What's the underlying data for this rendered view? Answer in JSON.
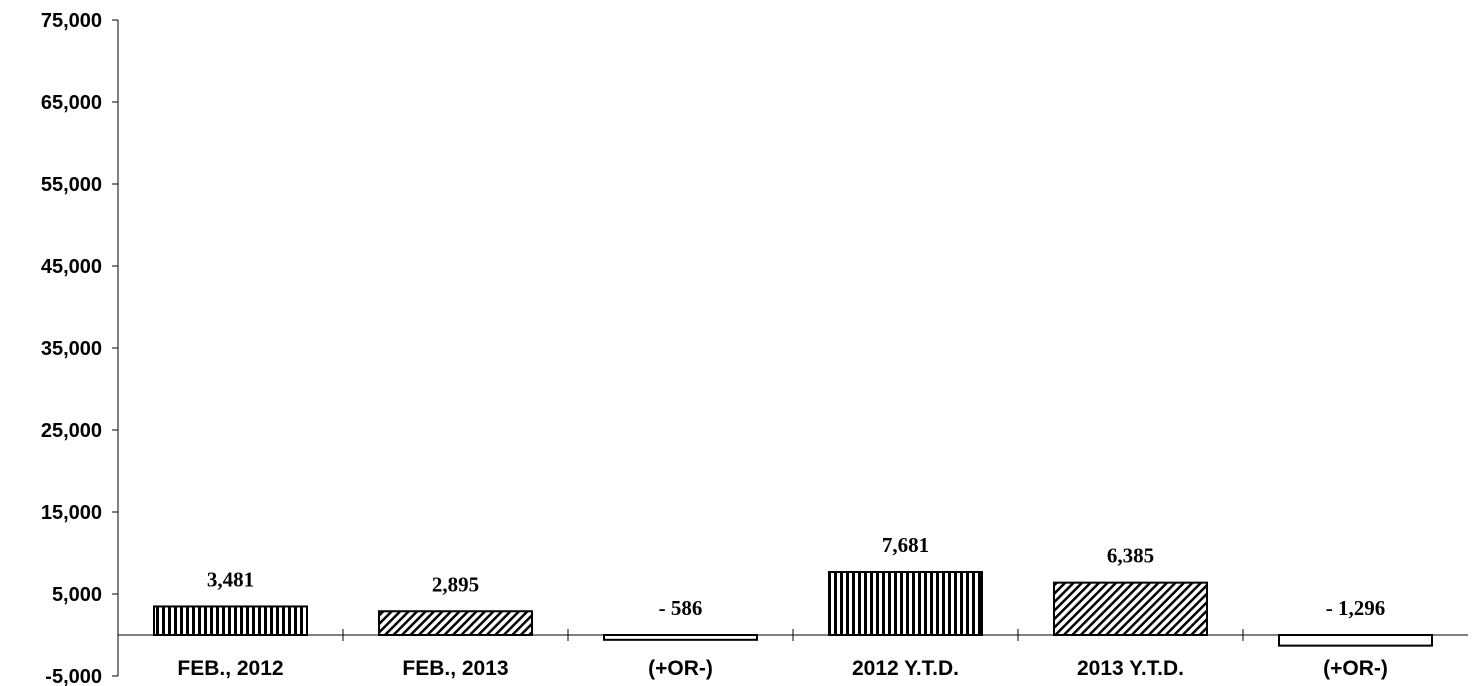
{
  "chart_data": {
    "type": "bar",
    "categories": [
      "FEB., 2012",
      "FEB., 2013",
      "(+OR-)",
      "2012 Y.T.D.",
      "2013 Y.T.D.",
      "(+OR-)"
    ],
    "values": [
      3481,
      2895,
      -586,
      7681,
      6385,
      -1296
    ],
    "data_labels": [
      "3,481",
      "2,895",
      "- 586",
      "7,681",
      "6,385",
      "- 1,296"
    ],
    "patterns": [
      "vertical",
      "diagonal",
      "plain",
      "vertical",
      "diagonal",
      "plain"
    ],
    "ylim": [
      -5000,
      75000
    ],
    "yticks": [
      75000,
      65000,
      55000,
      45000,
      35000,
      25000,
      15000,
      5000,
      -5000
    ],
    "ytick_labels": [
      "75,000",
      "65,000",
      "55,000",
      "45,000",
      "35,000",
      "25,000",
      "15,000",
      "5,000",
      "-5,000"
    ],
    "title": "",
    "xlabel": "",
    "ylabel": "",
    "grid": false,
    "bar_color": "#ffffff",
    "line_color": "#000000"
  }
}
